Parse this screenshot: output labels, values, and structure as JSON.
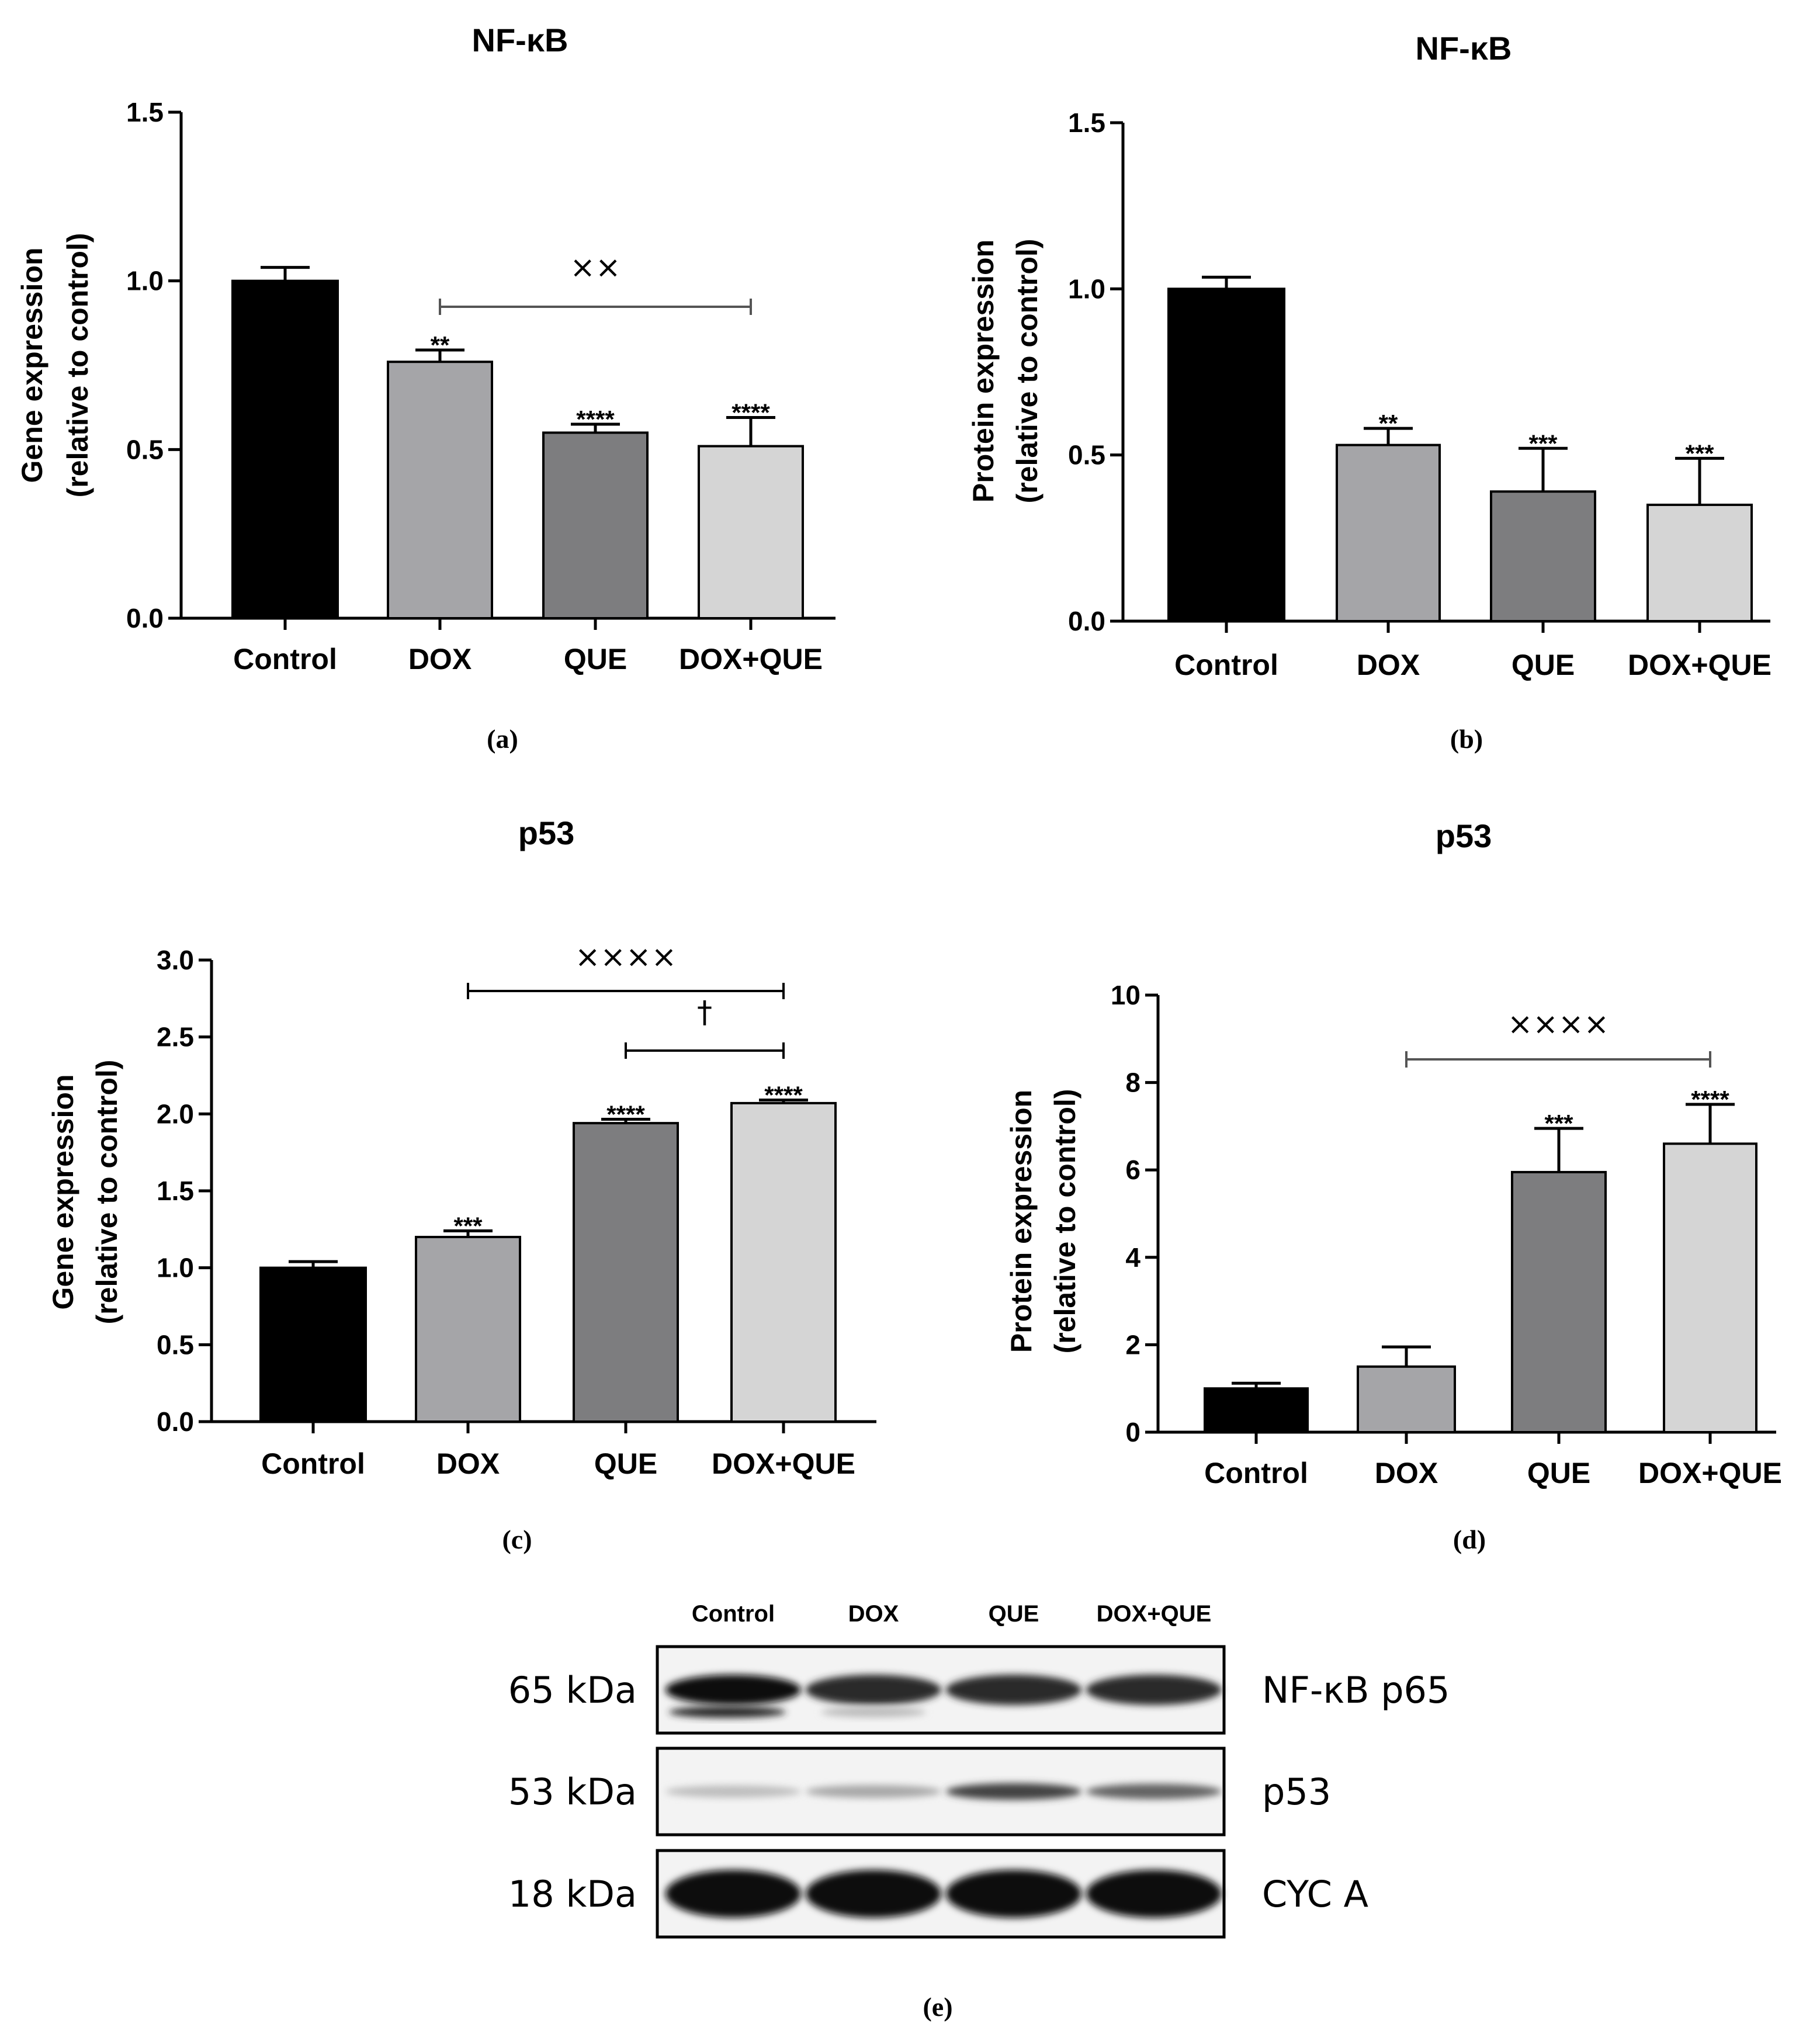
{
  "chart_data": [
    {
      "panel": "(a)",
      "type": "bar",
      "title": "NF-κB",
      "ylabel": [
        "Gene expression",
        "(relative to control)"
      ],
      "categories": [
        "Control",
        "DOX",
        "QUE",
        "DOX+QUE"
      ],
      "values": [
        1.0,
        0.76,
        0.55,
        0.51
      ],
      "errors": [
        0.04,
        0.035,
        0.025,
        0.085
      ],
      "stars": [
        "",
        "**",
        "****",
        "****"
      ],
      "ylim": [
        0,
        1.5
      ],
      "yticks": [
        "0.0",
        "0.5",
        "1.0",
        "1.5"
      ],
      "colors": [
        "#000000",
        "#a5a5a8",
        "#7d7d7f",
        "#d5d5d5"
      ],
      "brackets": [
        {
          "from": 1,
          "to": 3,
          "label": "××"
        }
      ]
    },
    {
      "panel": "(b)",
      "type": "bar",
      "title": "NF-κB",
      "ylabel": [
        "Protein expression",
        "(relative to control)"
      ],
      "categories": [
        "Control",
        "DOX",
        "QUE",
        "DOX+QUE"
      ],
      "values": [
        1.0,
        0.53,
        0.39,
        0.35
      ],
      "errors": [
        0.035,
        0.05,
        0.13,
        0.14
      ],
      "stars": [
        "",
        "**",
        "***",
        "***"
      ],
      "ylim": [
        0,
        1.5
      ],
      "yticks": [
        "0.0",
        "0.5",
        "1.0",
        "1.5"
      ],
      "colors": [
        "#000000",
        "#a5a5a8",
        "#7d7d7f",
        "#d5d5d5"
      ],
      "brackets": []
    },
    {
      "panel": "(c)",
      "type": "bar",
      "title": "p53",
      "ylabel": [
        "Gene expression",
        "(relative to control)"
      ],
      "categories": [
        "Control",
        "DOX",
        "QUE",
        "DOX+QUE"
      ],
      "values": [
        1.0,
        1.2,
        1.94,
        2.07
      ],
      "errors": [
        0.04,
        0.04,
        0.025,
        0.02
      ],
      "stars": [
        "",
        "***",
        "****",
        "****"
      ],
      "ylim": [
        0,
        3.0
      ],
      "yticks": [
        "0.0",
        "0.5",
        "1.0",
        "1.5",
        "2.0",
        "2.5",
        "3.0"
      ],
      "colors": [
        "#000000",
        "#a5a5a8",
        "#7d7d7f",
        "#d5d5d5"
      ],
      "brackets": [
        {
          "from": 1,
          "to": 3,
          "label": "××××"
        },
        {
          "from": 2,
          "to": 3,
          "label": "†"
        }
      ]
    },
    {
      "panel": "(d)",
      "type": "bar",
      "title": "p53",
      "ylabel": [
        "Protein expression",
        "(relative to control)"
      ],
      "categories": [
        "Control",
        "DOX",
        "QUE",
        "DOX+QUE"
      ],
      "values": [
        1.0,
        1.5,
        5.95,
        6.6
      ],
      "errors": [
        0.12,
        0.45,
        1.0,
        0.9
      ],
      "stars": [
        "",
        "",
        "***",
        "****"
      ],
      "ylim": [
        0,
        10
      ],
      "yticks": [
        "0",
        "2",
        "4",
        "6",
        "8",
        "10"
      ],
      "colors": [
        "#000000",
        "#a5a5a8",
        "#7d7d7f",
        "#d5d5d5"
      ],
      "brackets": [
        {
          "from": 1,
          "to": 3,
          "label": "××××"
        }
      ]
    }
  ],
  "blot": {
    "panel": "(e)",
    "lanes": [
      "Control",
      "DOX",
      "QUE",
      "DOX+QUE"
    ],
    "rows": [
      {
        "size": "65 kDa",
        "name": "NF-κB p65",
        "intensity": [
          1.0,
          0.85,
          0.85,
          0.85
        ]
      },
      {
        "size": "53 kDa",
        "name": "p53",
        "intensity": [
          0.2,
          0.3,
          0.75,
          0.6
        ]
      },
      {
        "size": "18 kDa",
        "name": "CYC A",
        "intensity": [
          1.0,
          1.0,
          1.0,
          1.0
        ]
      }
    ]
  }
}
